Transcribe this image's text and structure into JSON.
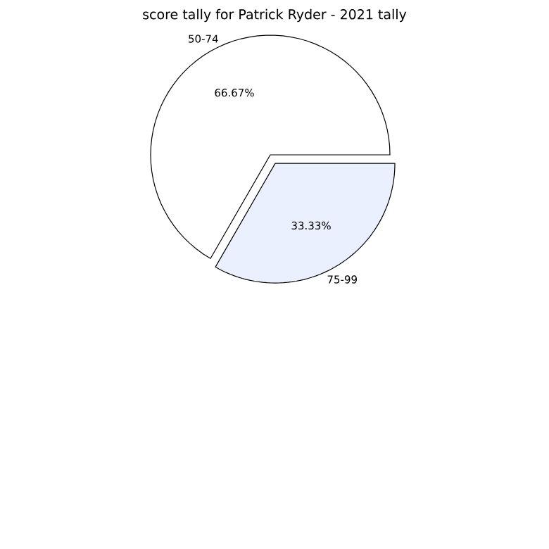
{
  "chart_data": {
    "type": "pie",
    "title": "score tally for Patrick Ryder - 2021 tally",
    "categories": [
      "50-74",
      "75-99"
    ],
    "values": [
      66.67,
      33.33
    ],
    "colors": [
      "#ffffff",
      "#eaf0fe"
    ],
    "value_labels": [
      "66.67%",
      "33.33%"
    ]
  }
}
